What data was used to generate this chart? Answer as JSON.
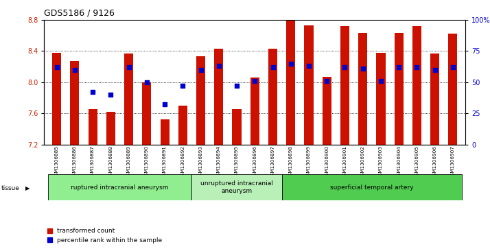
{
  "title": "GDS5186 / 9126",
  "samples": [
    "GSM1306885",
    "GSM1306886",
    "GSM1306887",
    "GSM1306888",
    "GSM1306889",
    "GSM1306890",
    "GSM1306891",
    "GSM1306892",
    "GSM1306893",
    "GSM1306894",
    "GSM1306895",
    "GSM1306896",
    "GSM1306897",
    "GSM1306898",
    "GSM1306899",
    "GSM1306900",
    "GSM1306901",
    "GSM1306902",
    "GSM1306903",
    "GSM1306904",
    "GSM1306905",
    "GSM1306906",
    "GSM1306907"
  ],
  "transformed_count": [
    8.38,
    8.27,
    7.65,
    7.62,
    8.37,
    8.0,
    7.52,
    7.7,
    8.33,
    8.43,
    7.65,
    8.06,
    8.43,
    8.8,
    8.73,
    8.07,
    8.72,
    8.63,
    8.38,
    8.63,
    8.72,
    8.37,
    8.62
  ],
  "percentile_rank": [
    62,
    60,
    42,
    40,
    62,
    50,
    32,
    47,
    60,
    63,
    47,
    51,
    62,
    65,
    63,
    51,
    62,
    61,
    51,
    62,
    62,
    60,
    62
  ],
  "groups": [
    {
      "label": "ruptured intracranial aneurysm",
      "start": 0,
      "end": 8,
      "color": "#90ee90"
    },
    {
      "label": "unruptured intracranial\naneurysm",
      "start": 8,
      "end": 13,
      "color": "#b8f0b8"
    },
    {
      "label": "superficial temporal artery",
      "start": 13,
      "end": 23,
      "color": "#50cc50"
    }
  ],
  "ylim_left": [
    7.2,
    8.8
  ],
  "ylim_right": [
    0,
    100
  ],
  "bar_color": "#cc1100",
  "dot_color": "#0000cc",
  "plot_bg": "#ffffff",
  "label_color_left": "#cc2200",
  "label_color_right": "#0000cc",
  "yticks_left": [
    7.2,
    7.6,
    8.0,
    8.4,
    8.8
  ],
  "yticks_right": [
    0,
    25,
    50,
    75,
    100
  ],
  "ytick_labels_right": [
    "0",
    "25",
    "50",
    "75",
    "100%"
  ]
}
